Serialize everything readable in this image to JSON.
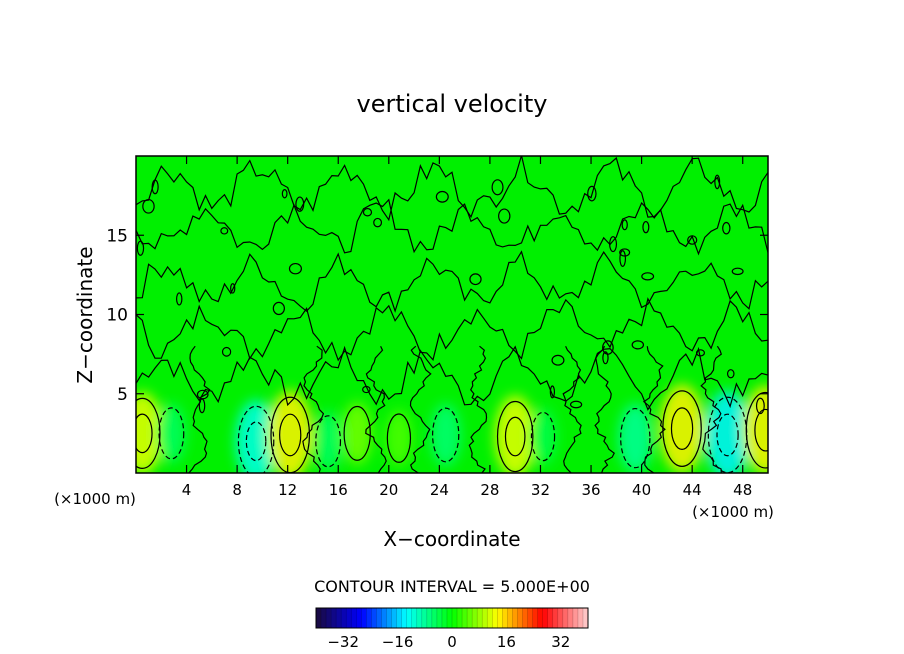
{
  "chart_data": {
    "type": "heatmap",
    "title": "vertical velocity",
    "xlabel": "X−coordinate",
    "ylabel": "Z−coordinate",
    "x_unit_label": "(×1000 m)",
    "y_unit_label": "(×1000 m)",
    "xlim": [
      0,
      50
    ],
    "ylim": [
      0,
      20
    ],
    "x_ticks": [
      4,
      8,
      12,
      16,
      20,
      24,
      28,
      32,
      36,
      40,
      44,
      48
    ],
    "x_tick_labels": [
      "4",
      "8",
      "12",
      "16",
      "20",
      "24",
      "28",
      "32",
      "36",
      "40",
      "44",
      "48"
    ],
    "y_ticks": [
      5,
      10,
      15
    ],
    "y_tick_labels": [
      "5",
      "10",
      "15"
    ],
    "contour_interval_label": "CONTOUR INTERVAL = 5.000E+00",
    "contour_interval": 5.0,
    "colorbar": {
      "min": -40,
      "max": 40,
      "ticks": [
        -32,
        -16,
        0,
        16,
        32
      ],
      "tick_labels": [
        "−32",
        "−16",
        "0",
        "16",
        "32"
      ],
      "colors": [
        "#1a0b3b",
        "#0000ff",
        "#00ffff",
        "#00ff00",
        "#ffff00",
        "#ff0000",
        "#ffd0d0"
      ]
    },
    "field_background_color": "#00f000",
    "features": [
      {
        "kind": "updraft",
        "x": 0.5,
        "z": 2.5,
        "value": 12
      },
      {
        "kind": "downdraft",
        "x": 2.8,
        "z": 2.5,
        "value": -5
      },
      {
        "kind": "downdraft",
        "x": 9.5,
        "z": 2.0,
        "value": -12
      },
      {
        "kind": "updraft",
        "x": 12.2,
        "z": 2.4,
        "value": 14
      },
      {
        "kind": "downdraft",
        "x": 15.2,
        "z": 2.0,
        "value": -5
      },
      {
        "kind": "updraft",
        "x": 17.5,
        "z": 2.5,
        "value": 6
      },
      {
        "kind": "updraft",
        "x": 20.8,
        "z": 2.2,
        "value": 4
      },
      {
        "kind": "downdraft",
        "x": 24.5,
        "z": 2.4,
        "value": -6
      },
      {
        "kind": "updraft",
        "x": 30.0,
        "z": 2.3,
        "value": 12
      },
      {
        "kind": "downdraft",
        "x": 32.2,
        "z": 2.3,
        "value": -4
      },
      {
        "kind": "downdraft",
        "x": 39.5,
        "z": 2.2,
        "value": -8
      },
      {
        "kind": "updraft",
        "x": 43.2,
        "z": 2.8,
        "value": 14
      },
      {
        "kind": "downdraft",
        "x": 46.8,
        "z": 2.4,
        "value": -14
      },
      {
        "kind": "updraft",
        "x": 49.8,
        "z": 2.7,
        "value": 14
      }
    ]
  }
}
